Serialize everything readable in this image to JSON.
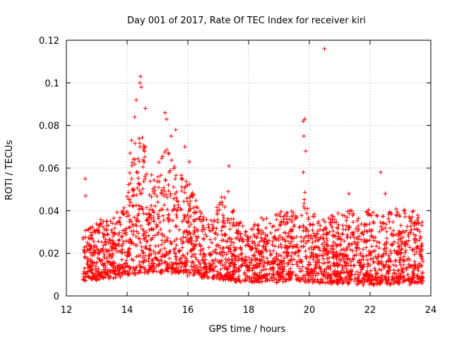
{
  "chart_data": {
    "type": "scatter",
    "title": "Day 001 of 2017, Rate Of TEC Index for receiver kiri",
    "xlabel": "GPS time / hours",
    "ylabel": "ROTI / TECUs",
    "xlim": [
      12,
      24
    ],
    "ylim": [
      0,
      0.12
    ],
    "x_ticks": [
      12,
      14,
      16,
      18,
      20,
      22,
      24
    ],
    "x_tick_labels": [
      "12",
      "14",
      "16",
      "18",
      "20",
      "22",
      "24"
    ],
    "y_ticks": [
      0,
      0.02,
      0.04,
      0.06,
      0.08,
      0.1,
      0.12
    ],
    "y_tick_labels": [
      "0",
      "0.02",
      "0.04",
      "0.06",
      "0.08",
      "0.1",
      "0.12"
    ],
    "grid": true,
    "marker": "+",
    "marker_color": "#ff0000",
    "series": [
      {
        "name": "ROTI",
        "x_range": [
          12.55,
          23.75
        ],
        "envelope": {
          "x": [
            12.55,
            12.8,
            13.0,
            13.3,
            13.6,
            13.9,
            14.1,
            14.3,
            14.45,
            14.6,
            14.8,
            15.0,
            15.2,
            15.4,
            15.6,
            15.8,
            16.0,
            16.2,
            16.5,
            16.8,
            17.0,
            17.3,
            17.6,
            18.0,
            18.3,
            18.6,
            19.0,
            19.4,
            19.7,
            19.85,
            20.0,
            20.2,
            20.5,
            20.8,
            21.1,
            21.4,
            21.7,
            22.0,
            22.3,
            22.6,
            22.9,
            23.2,
            23.5,
            23.75
          ],
          "low": [
            0.008,
            0.008,
            0.008,
            0.009,
            0.009,
            0.01,
            0.01,
            0.011,
            0.011,
            0.011,
            0.011,
            0.011,
            0.011,
            0.011,
            0.011,
            0.011,
            0.01,
            0.01,
            0.009,
            0.008,
            0.008,
            0.008,
            0.007,
            0.007,
            0.007,
            0.007,
            0.007,
            0.007,
            0.007,
            0.007,
            0.007,
            0.006,
            0.006,
            0.006,
            0.006,
            0.006,
            0.006,
            0.006,
            0.006,
            0.006,
            0.006,
            0.006,
            0.006,
            0.007
          ],
          "high": [
            0.03,
            0.032,
            0.034,
            0.036,
            0.038,
            0.045,
            0.058,
            0.075,
            0.082,
            0.07,
            0.058,
            0.06,
            0.07,
            0.068,
            0.062,
            0.058,
            0.055,
            0.048,
            0.038,
            0.035,
            0.045,
            0.05,
            0.036,
            0.032,
            0.036,
            0.038,
            0.04,
            0.042,
            0.038,
            0.05,
            0.045,
            0.038,
            0.036,
            0.038,
            0.04,
            0.04,
            0.038,
            0.04,
            0.04,
            0.042,
            0.04,
            0.04,
            0.04,
            0.038
          ]
        },
        "peaks": [
          {
            "x": 12.62,
            "y": 0.055
          },
          {
            "x": 12.63,
            "y": 0.047
          },
          {
            "x": 14.1,
            "y": 0.067
          },
          {
            "x": 14.15,
            "y": 0.073
          },
          {
            "x": 14.25,
            "y": 0.084
          },
          {
            "x": 14.3,
            "y": 0.092
          },
          {
            "x": 14.42,
            "y": 0.1
          },
          {
            "x": 14.44,
            "y": 0.103
          },
          {
            "x": 14.47,
            "y": 0.098
          },
          {
            "x": 14.6,
            "y": 0.088
          },
          {
            "x": 14.55,
            "y": 0.063
          },
          {
            "x": 15.25,
            "y": 0.086
          },
          {
            "x": 15.3,
            "y": 0.083
          },
          {
            "x": 15.45,
            "y": 0.075
          },
          {
            "x": 15.6,
            "y": 0.078
          },
          {
            "x": 15.9,
            "y": 0.07
          },
          {
            "x": 16.05,
            "y": 0.063
          },
          {
            "x": 17.35,
            "y": 0.061
          },
          {
            "x": 19.8,
            "y": 0.082
          },
          {
            "x": 19.85,
            "y": 0.083
          },
          {
            "x": 19.82,
            "y": 0.075
          },
          {
            "x": 19.88,
            "y": 0.068
          },
          {
            "x": 19.8,
            "y": 0.058
          },
          {
            "x": 20.5,
            "y": 0.116
          },
          {
            "x": 22.35,
            "y": 0.058
          },
          {
            "x": 21.3,
            "y": 0.048
          },
          {
            "x": 22.5,
            "y": 0.048
          }
        ]
      }
    ]
  }
}
